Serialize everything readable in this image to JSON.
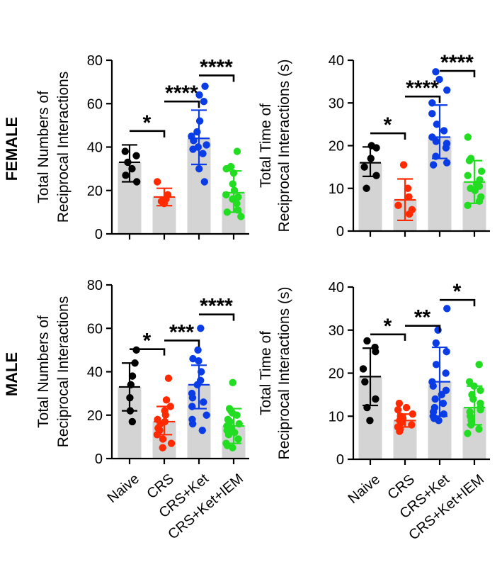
{
  "row_labels": [
    "FEMALE",
    "MALE"
  ],
  "categories": [
    "Naive",
    "CRS",
    "CRS+Ket",
    "CRS+Ket+IEM"
  ],
  "colors": {
    "Naive": "#000000",
    "CRS": "#ff2a00",
    "CRS+Ket": "#0a3ce6",
    "CRS+Ket+IEM": "#22dd22",
    "bar_fill": "#d4d4d4"
  },
  "chart_data": [
    {
      "id": "female-number",
      "type": "bar",
      "ylabel_lines": [
        "Total Numbers of",
        "Reciprocal Interactions"
      ],
      "ylim": [
        0,
        80
      ],
      "yticks": [
        0,
        20,
        40,
        60,
        80
      ],
      "means": [
        33,
        17,
        44,
        19
      ],
      "err": [
        [
          24,
          41
        ],
        [
          13,
          21
        ],
        [
          32,
          57
        ],
        [
          10,
          29
        ]
      ],
      "points": [
        [
          38,
          36,
          33,
          30,
          27,
          24
        ],
        [
          24,
          18,
          16,
          16,
          15,
          14
        ],
        [
          68,
          64,
          61,
          52,
          47,
          45,
          43,
          41,
          40,
          39,
          37,
          30,
          24
        ],
        [
          38,
          31,
          30,
          28,
          23,
          20,
          18,
          17,
          16,
          14,
          11,
          10,
          8
        ]
      ],
      "sig": [
        {
          "from": 0,
          "to": 1,
          "label": "*"
        },
        {
          "from": 1,
          "to": 2,
          "label": "****"
        },
        {
          "from": 2,
          "to": 3,
          "label": "****"
        }
      ]
    },
    {
      "id": "female-time",
      "type": "bar",
      "ylabel_lines": [
        "Total Time of",
        "Reciprocal Interactions (s)"
      ],
      "ylim": [
        0,
        40
      ],
      "yticks": [
        0,
        10,
        20,
        30,
        40
      ],
      "means": [
        16,
        7.3,
        22,
        11.5
      ],
      "err": [
        [
          12.8,
          19.7
        ],
        [
          2.5,
          12.2
        ],
        [
          17,
          29.5
        ],
        [
          6.5,
          16.5
        ]
      ],
      "points": [
        [
          20,
          19.5,
          17,
          15,
          13,
          10
        ],
        [
          15.5,
          10,
          8,
          6,
          5,
          4
        ],
        [
          37.3,
          35.5,
          33,
          30,
          27.5,
          25,
          23.5,
          22,
          21,
          20.5,
          19.5,
          17.5,
          16,
          15.5
        ],
        [
          22,
          17,
          16.5,
          14,
          13,
          12,
          11,
          10.5,
          10,
          9.5,
          8,
          7,
          6
        ]
      ],
      "sig": [
        {
          "from": 0,
          "to": 1,
          "label": "*"
        },
        {
          "from": 1,
          "to": 2,
          "label": "****"
        },
        {
          "from": 2,
          "to": 3,
          "label": "****"
        }
      ]
    },
    {
      "id": "male-number",
      "type": "bar",
      "ylabel_lines": [
        "Total Numbers of",
        "Reciprocal Interactions"
      ],
      "ylim": [
        0,
        80
      ],
      "yticks": [
        0,
        20,
        40,
        60,
        80
      ],
      "means": [
        33,
        17,
        34,
        15
      ],
      "err": [
        [
          22,
          44
        ],
        [
          11,
          24
        ],
        [
          23,
          43
        ],
        [
          7,
          23
        ]
      ],
      "points": [
        [
          50,
          44,
          38,
          34,
          28,
          22,
          17
        ],
        [
          37,
          27,
          24,
          22,
          20,
          18,
          17,
          16,
          14,
          13,
          11,
          9,
          7,
          5
        ],
        [
          60,
          50,
          46,
          45,
          40,
          36,
          34,
          30,
          28,
          26,
          24,
          20,
          18,
          16,
          13
        ],
        [
          35,
          23,
          22,
          21,
          20,
          18,
          17,
          16,
          15,
          14,
          13,
          12,
          11,
          9,
          7,
          6,
          5
        ]
      ],
      "sig": [
        {
          "from": 0,
          "to": 1,
          "label": "*"
        },
        {
          "from": 1,
          "to": 2,
          "label": "***"
        },
        {
          "from": 2,
          "to": 3,
          "label": "****"
        }
      ]
    },
    {
      "id": "male-time",
      "type": "bar",
      "ylabel_lines": [
        "Total Time of",
        "Reciprocal Interactions (s)"
      ],
      "ylim": [
        0,
        40
      ],
      "yticks": [
        0,
        10,
        20,
        30,
        40
      ],
      "means": [
        19.2,
        9,
        18,
        12
      ],
      "err": [
        [
          12.5,
          25.8
        ],
        [
          7.5,
          10.5
        ],
        [
          10,
          26
        ],
        [
          8,
          17
        ]
      ],
      "points": [
        [
          27.5,
          26,
          25,
          21,
          18,
          14,
          12,
          9
        ],
        [
          13,
          12,
          11.5,
          10.5,
          10,
          9.5,
          9,
          8.5,
          8,
          7.5,
          7,
          6.5
        ],
        [
          35,
          30,
          27,
          25,
          22,
          20,
          18,
          17,
          16,
          15,
          14,
          13,
          12,
          11,
          10.5,
          10,
          9.5,
          9
        ],
        [
          22,
          18,
          17,
          16,
          15,
          14,
          13,
          12,
          11.5,
          11,
          10,
          9,
          8,
          7,
          6
        ]
      ],
      "sig": [
        {
          "from": 0,
          "to": 1,
          "label": "*"
        },
        {
          "from": 1,
          "to": 2,
          "label": "**"
        },
        {
          "from": 2,
          "to": 3,
          "label": "*"
        }
      ]
    }
  ]
}
